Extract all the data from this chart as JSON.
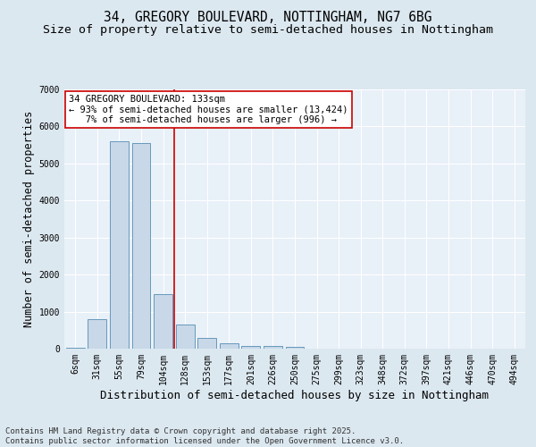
{
  "title_line1": "34, GREGORY BOULEVARD, NOTTINGHAM, NG7 6BG",
  "title_line2": "Size of property relative to semi-detached houses in Nottingham",
  "xlabel": "Distribution of semi-detached houses by size in Nottingham",
  "ylabel": "Number of semi-detached properties",
  "categories": [
    "6sqm",
    "31sqm",
    "55sqm",
    "79sqm",
    "104sqm",
    "128sqm",
    "153sqm",
    "177sqm",
    "201sqm",
    "226sqm",
    "250sqm",
    "275sqm",
    "299sqm",
    "323sqm",
    "348sqm",
    "372sqm",
    "397sqm",
    "421sqm",
    "446sqm",
    "470sqm",
    "494sqm"
  ],
  "values": [
    30,
    800,
    5600,
    5550,
    1480,
    650,
    290,
    140,
    80,
    70,
    50,
    0,
    0,
    0,
    0,
    0,
    0,
    0,
    0,
    0,
    0
  ],
  "bar_color": "#c8d8e8",
  "bar_edge_color": "#6699bb",
  "property_bin_index": 5,
  "vline_color": "#cc0000",
  "annotation_text": "34 GREGORY BOULEVARD: 133sqm\n← 93% of semi-detached houses are smaller (13,424)\n   7% of semi-detached houses are larger (996) →",
  "annotation_box_color": "#ffffff",
  "annotation_box_edge": "#cc0000",
  "ylim": [
    0,
    7000
  ],
  "yticks": [
    0,
    1000,
    2000,
    3000,
    4000,
    5000,
    6000,
    7000
  ],
  "footer_line1": "Contains HM Land Registry data © Crown copyright and database right 2025.",
  "footer_line2": "Contains public sector information licensed under the Open Government Licence v3.0.",
  "bg_color": "#dce8f0",
  "plot_bg_color": "#e8f0f8",
  "grid_color": "#ffffff",
  "title_fontsize": 10.5,
  "subtitle_fontsize": 9.5,
  "axis_label_fontsize": 8.5,
  "tick_fontsize": 7,
  "footer_fontsize": 6.5,
  "annotation_fontsize": 7.5
}
